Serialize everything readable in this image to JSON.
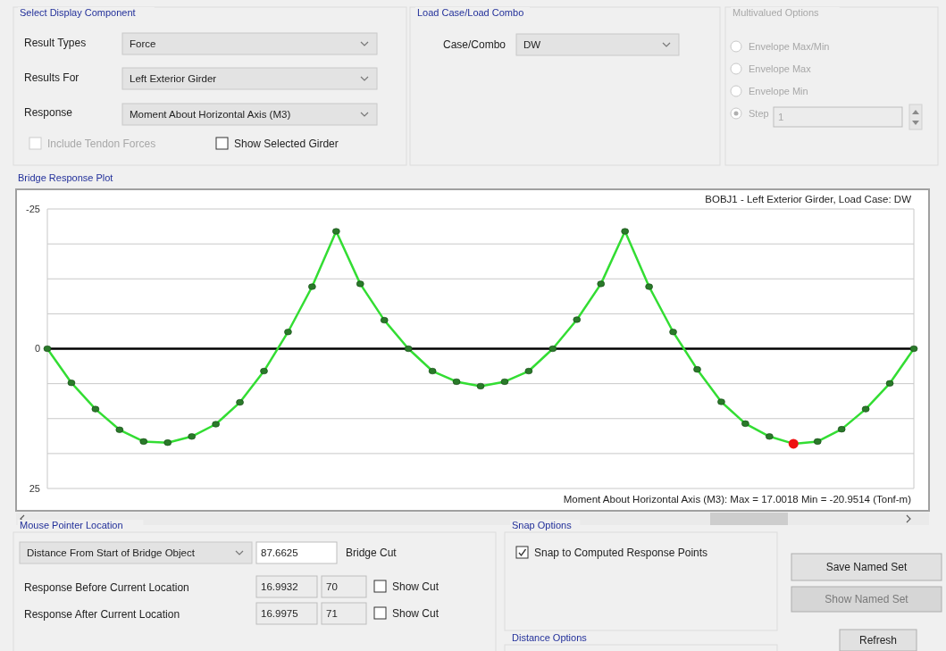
{
  "chart_data": [
    {
      "type": "other",
      "title": "Select Display Component",
      "annotations": [
        "Result Types",
        "Force",
        "Results For",
        "Left Exterior Girder",
        "Response",
        "Moment About Horizontal Axis  (M3)",
        "Include Tendon Forces",
        "Show Selected Girder"
      ]
    },
    {
      "type": "other",
      "title": "Load Case/Load Combo",
      "annotations": [
        "Case/Combo",
        "DW"
      ]
    },
    {
      "type": "other",
      "title": "Multivalued Options",
      "annotations": [
        "Envelope Max/Min",
        "Envelope Max",
        "Envelope Min",
        "Step",
        "1"
      ]
    },
    {
      "type": "line",
      "title": "Bridge Response Plot",
      "subtitle": "BOBJ1 - Left Exterior Girder,  Load Case: DW",
      "annotations": [
        "Moment About Horizontal Axis  (M3):  Max = 17.0018    Min = -20.9514  (Tonf-m)"
      ],
      "categories": [
        null,
        null,
        null,
        null,
        null,
        null,
        null,
        null,
        null,
        null,
        null,
        null,
        null,
        null,
        null,
        null,
        null,
        null,
        null,
        null,
        null,
        null,
        null,
        null,
        null,
        null,
        null,
        null,
        null,
        null,
        null,
        null,
        null,
        null,
        null,
        null,
        null
      ],
      "series": [
        {
          "color": "#33dd33",
          "colors": [
            "#2a7a2a",
            "#2a7a2a",
            "#2a7a2a",
            "#2a7a2a",
            "#2a7a2a",
            "#2a7a2a",
            "#2a7a2a",
            "#2a7a2a",
            "#2a7a2a",
            "#2a7a2a",
            "#2a7a2a",
            "#2a7a2a",
            "#2a7a2a",
            "#2a7a2a",
            "#2a7a2a",
            "#2a7a2a",
            "#2a7a2a",
            "#2a7a2a",
            "#2a7a2a",
            "#2a7a2a",
            "#2a7a2a",
            "#2a7a2a",
            "#2a7a2a",
            "#2a7a2a",
            "#2a7a2a",
            "#2a7a2a",
            "#2a7a2a",
            "#2a7a2a",
            "#2a7a2a",
            "#2a7a2a",
            "#2a7a2a",
            "#ee1111",
            "#2a7a2a",
            "#2a7a2a",
            "#2a7a2a",
            "#2a7a2a",
            "#2a7a2a"
          ],
          "values": [
            0,
            6.1,
            10.8,
            14.5,
            16.6,
            16.8,
            15.7,
            13.5,
            9.6,
            4.0,
            -3.0,
            -11.1,
            -21,
            -11.6,
            -5.1,
            0,
            4.0,
            5.9,
            6.7,
            5.9,
            4.0,
            0,
            -5.2,
            -11.6,
            -21,
            -11.1,
            -3.0,
            3.7,
            9.5,
            13.4,
            15.7,
            17.0,
            16.6,
            14.4,
            10.8,
            6.2,
            0
          ]
        }
      ],
      "ylim": [
        25,
        -25
      ],
      "yticks": [
        -25,
        {
          "value": -18.75,
          "label": null
        },
        {
          "value": -12.5,
          "label": null
        },
        {
          "value": -6.25,
          "label": null
        },
        0,
        {
          "value": 6.25,
          "label": null
        },
        {
          "value": 12.5,
          "label": null
        },
        {
          "value": 18.75,
          "label": null
        },
        25
      ],
      "grid": "y",
      "marker": "circle",
      "ref_lines": [
        {
          "axis": "y",
          "value": 0,
          "color": "#000000"
        }
      ]
    },
    {
      "type": "other",
      "title": "Mouse Pointer Location",
      "annotations": [
        "Distance From Start of Bridge Object",
        "87.6625",
        "Bridge Cut",
        "Response Before Current Location",
        "16.9932",
        "70",
        "Show Cut",
        "Response After Current Location",
        "16.9975",
        "71",
        "Show Cut"
      ]
    },
    {
      "type": "other",
      "title": "Snap Options",
      "annotations": [
        "Snap to Computed Response Points"
      ]
    },
    {
      "type": "other",
      "title": "Distance Options"
    },
    {
      "type": "other",
      "annotations": [
        "Save Named Set",
        "Show Named Set",
        "Refresh"
      ]
    }
  ]
}
